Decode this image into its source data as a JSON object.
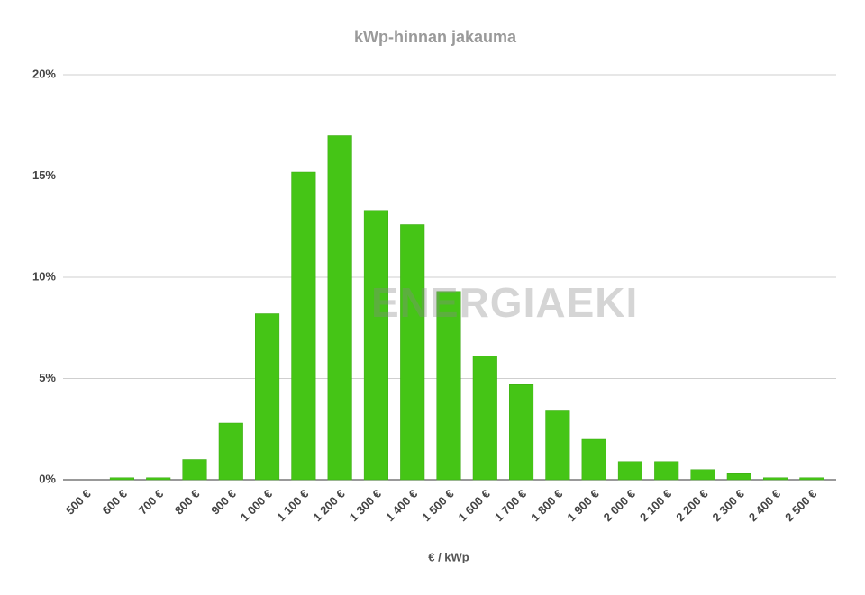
{
  "chart_data": {
    "type": "bar",
    "title": "kWp-hinnan jakauma",
    "x_label": "€ / kWp",
    "watermark": "ENERGIAEKI",
    "categories": [
      "500 €",
      "600 €",
      "700 €",
      "800 €",
      "900 €",
      "1 000 €",
      "1 100 €",
      "1 200 €",
      "1 300 €",
      "1 400 €",
      "1 500 €",
      "1 600 €",
      "1 700 €",
      "1 800 €",
      "1 900 €",
      "2 000 €",
      "2 100 €",
      "2 200 €",
      "2 300 €",
      "2 400 €",
      "2 500 €"
    ],
    "values": [
      0,
      0.1,
      0.1,
      1.0,
      2.8,
      8.2,
      15.2,
      17.0,
      13.3,
      12.6,
      9.3,
      6.1,
      4.7,
      3.4,
      2.0,
      0.9,
      0.9,
      0.5,
      0.3,
      0.1,
      0.1
    ],
    "color": "#45c516",
    "ylim": [
      0,
      20
    ],
    "yticks": [
      {
        "value": 0,
        "label": "0%"
      },
      {
        "value": 5,
        "label": "5%"
      },
      {
        "value": 10,
        "label": "10%"
      },
      {
        "value": 15,
        "label": "15%"
      },
      {
        "value": 20,
        "label": "20%"
      }
    ],
    "grid": true
  }
}
